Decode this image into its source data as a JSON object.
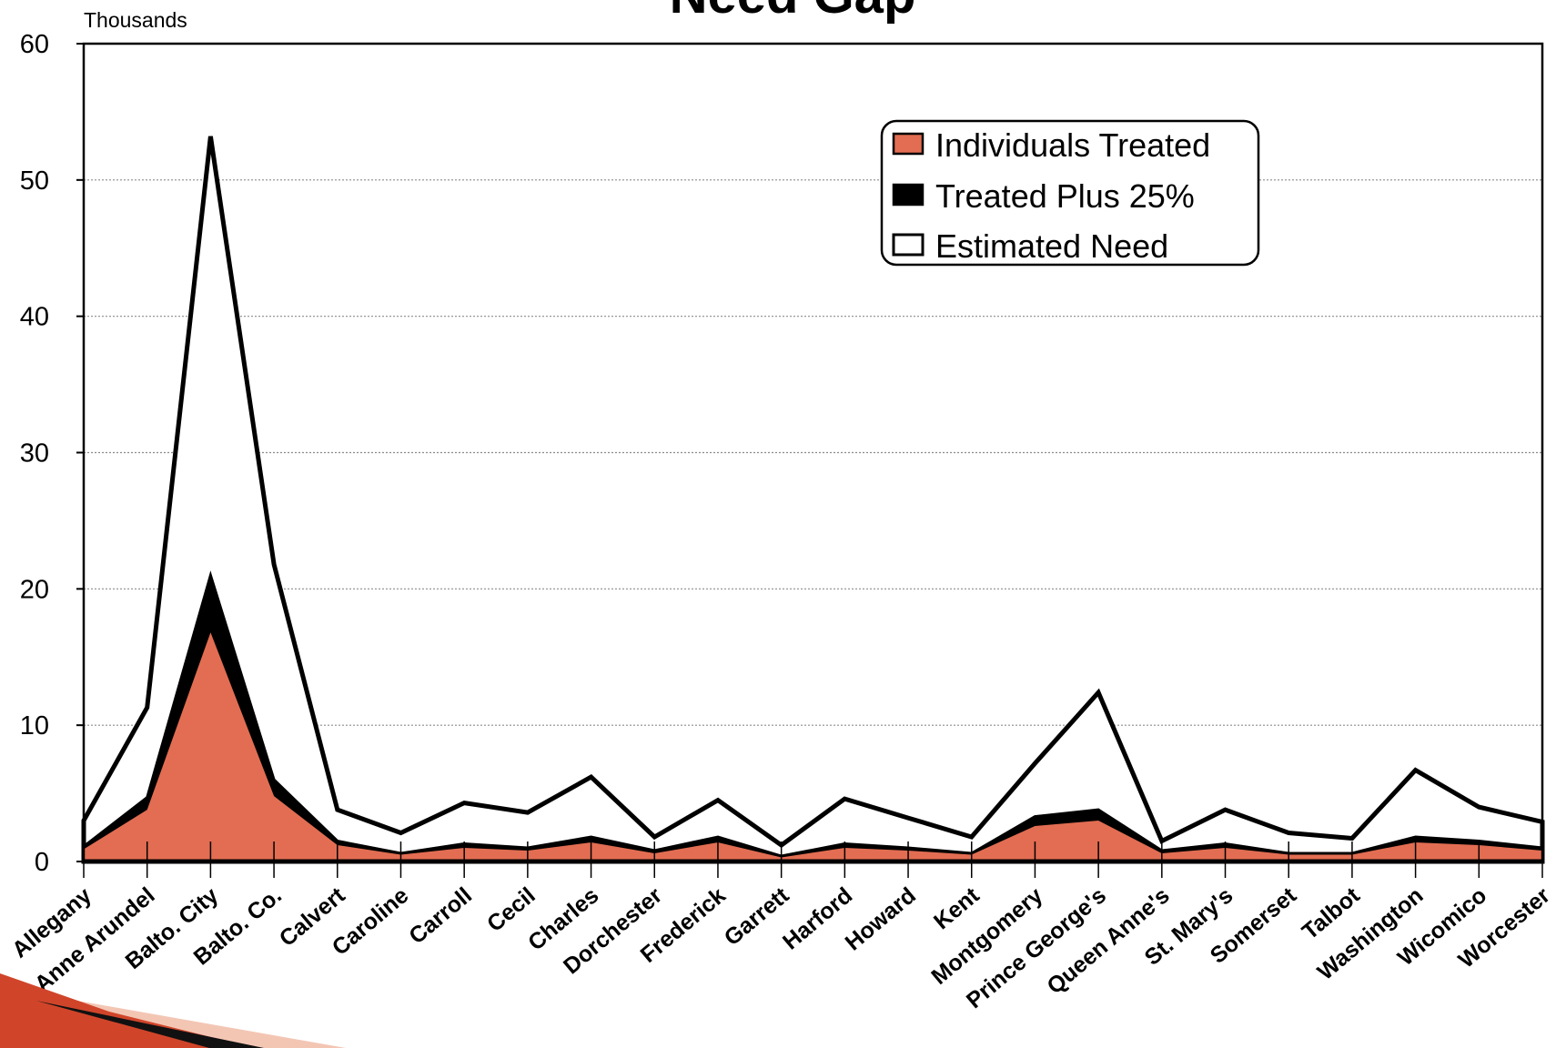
{
  "chart_data": {
    "type": "area",
    "title": "Need Gap",
    "units_label": "Thousands",
    "xlabel": "",
    "ylabel": "",
    "ylim": [
      0,
      60
    ],
    "yticks": [
      0,
      10,
      20,
      30,
      40,
      50,
      60
    ],
    "grid": true,
    "legend_position": "top-right",
    "categories": [
      "Allegany",
      "Anne Arundel",
      "Balto. City",
      "Balto. Co.",
      "Calvert",
      "Caroline",
      "Carroll",
      "Cecil",
      "Charles",
      "Dorchester",
      "Frederick",
      "Garrett",
      "Harford",
      "Howard",
      "Kent",
      "Montgomery",
      "Prince George's",
      "Queen Anne's",
      "St. Mary's",
      "Somerset",
      "Talbot",
      "Washington",
      "Wicomico",
      "Worcester"
    ],
    "series": [
      {
        "name": "Individuals Treated",
        "color": "#e26d52",
        "values": [
          0.9,
          3.8,
          16.8,
          4.8,
          1.2,
          0.5,
          1.0,
          0.8,
          1.4,
          0.6,
          1.4,
          0.3,
          1.0,
          0.8,
          0.5,
          2.6,
          3.0,
          0.6,
          1.0,
          0.5,
          0.5,
          1.4,
          1.2,
          0.8
        ]
      },
      {
        "name": "Treated Plus 25%",
        "color": "#000000",
        "values": [
          1.1,
          4.7,
          21.0,
          6.0,
          1.5,
          0.6,
          1.3,
          1.0,
          1.8,
          0.8,
          1.8,
          0.4,
          1.3,
          1.0,
          0.6,
          3.3,
          3.8,
          0.8,
          1.3,
          0.6,
          0.6,
          1.8,
          1.5,
          1.0
        ]
      },
      {
        "name": "Estimated Need",
        "color": "#ffffff",
        "values": [
          3.0,
          11.3,
          53.2,
          21.8,
          3.8,
          2.1,
          4.3,
          3.6,
          6.2,
          1.8,
          4.5,
          1.2,
          4.6,
          3.2,
          1.8,
          7.2,
          12.4,
          1.5,
          3.8,
          2.1,
          1.7,
          6.7,
          4.0,
          2.9
        ]
      }
    ]
  }
}
